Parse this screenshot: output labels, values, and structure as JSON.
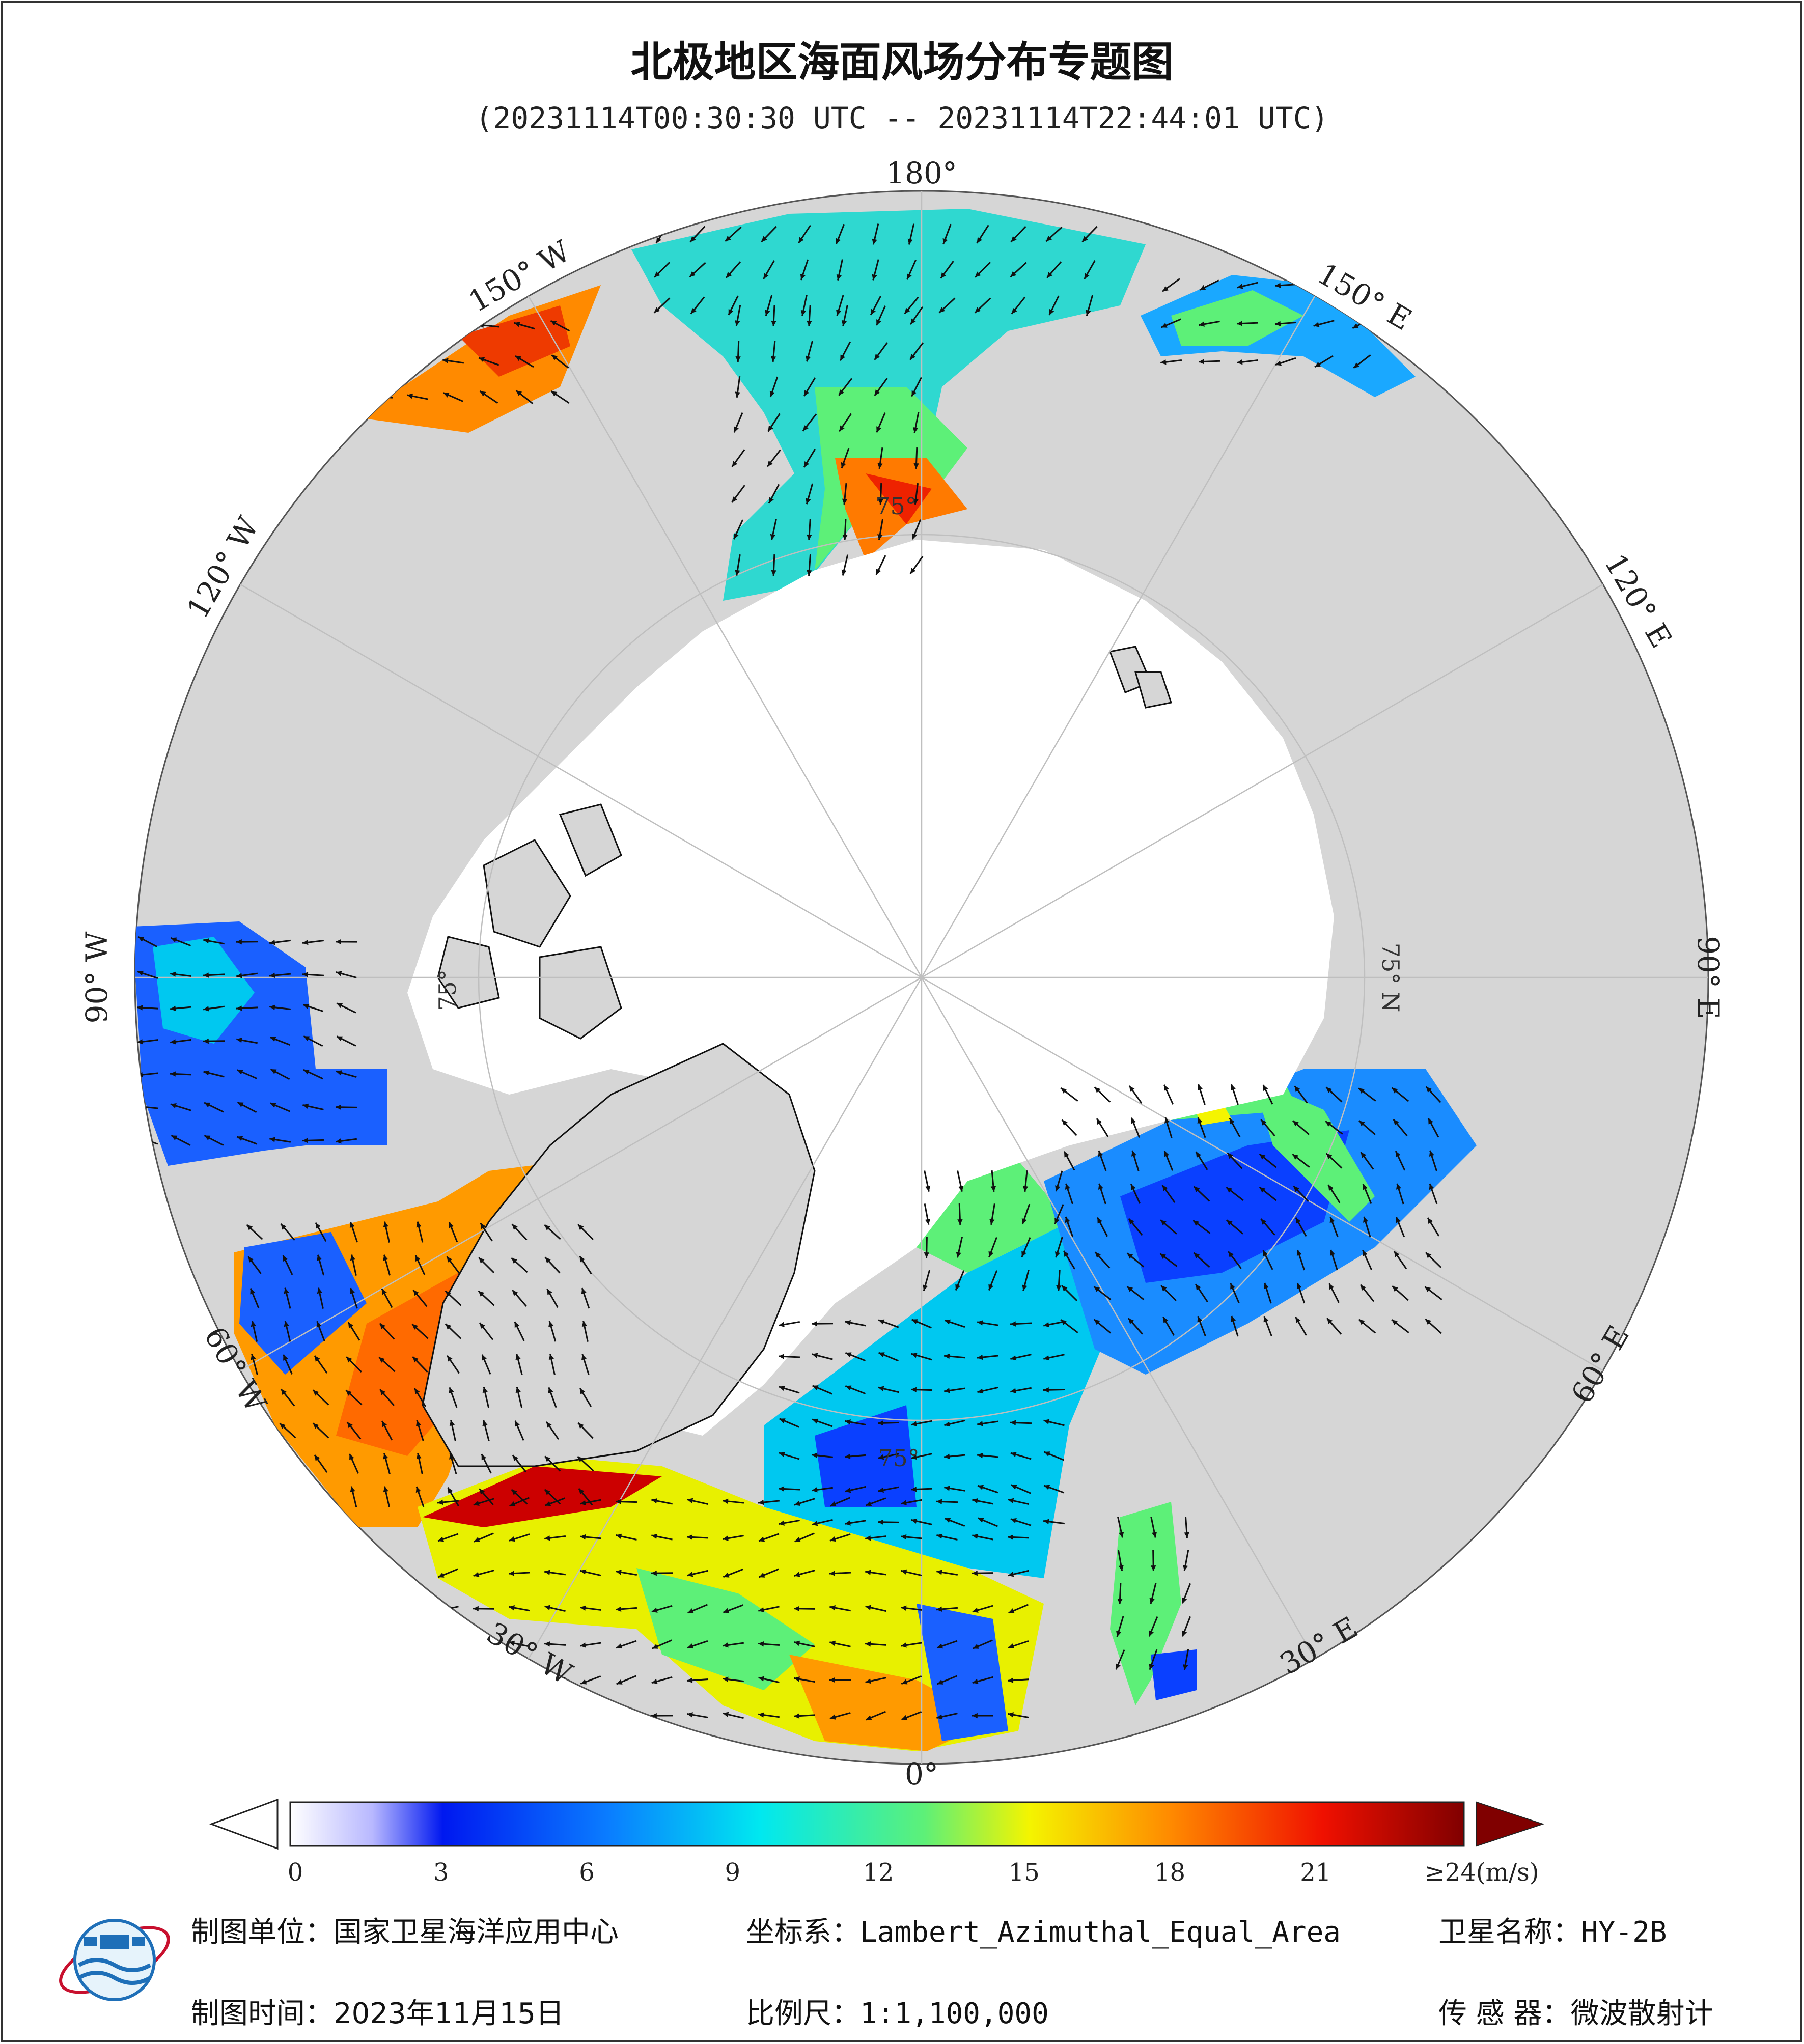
{
  "title": "北极地区海面风场分布专题图",
  "subtitle": "(20231114T00:30:30 UTC -- 20231114T22:44:01 UTC)",
  "map": {
    "projection": "Lambert_Azimuthal_Equal_Area",
    "center": "North Pole",
    "colors": {
      "land": "#d6d6d6",
      "sea_ice": "#ffffff",
      "coastline": "#111111",
      "graticule": "#bfbfbf",
      "arrow": "#111111"
    },
    "longitude_labels": [
      "180°",
      "150° E",
      "120° E",
      "90° E",
      "60° E",
      "30° E",
      "0°",
      "30° W",
      "60° W",
      "90° W",
      "120° W",
      "150° W"
    ],
    "latitude_labels": [
      "75° N",
      "75°",
      "75°",
      "75°"
    ]
  },
  "colorbar": {
    "unit_label": "≥24(m/s)",
    "ticks": [
      "0",
      "3",
      "6",
      "9",
      "12",
      "15",
      "18",
      "21"
    ],
    "range": [
      0,
      24
    ],
    "colors": [
      "#ffffff",
      "#c8c8ff",
      "#0018f0",
      "#0a7cff",
      "#00e8f0",
      "#5df078",
      "#f4f400",
      "#ff8a00",
      "#f01000",
      "#800000"
    ]
  },
  "footer": {
    "unit_label": "制图单位：",
    "unit_value": "国家卫星海洋应用中心",
    "coord_label": "坐标系：",
    "coord_value": "Lambert_Azimuthal_Equal_Area",
    "satellite_label": "卫星名称：",
    "satellite_value": "HY-2B",
    "time_label": "制图时间：",
    "time_value": "2023年11月15日",
    "scale_label": "比例尺：",
    "scale_value": "1:1,100,000",
    "sensor_label": "传 感 器：",
    "sensor_value": "微波散射计"
  },
  "logo": {
    "icon": "nsoas-logo-icon"
  }
}
